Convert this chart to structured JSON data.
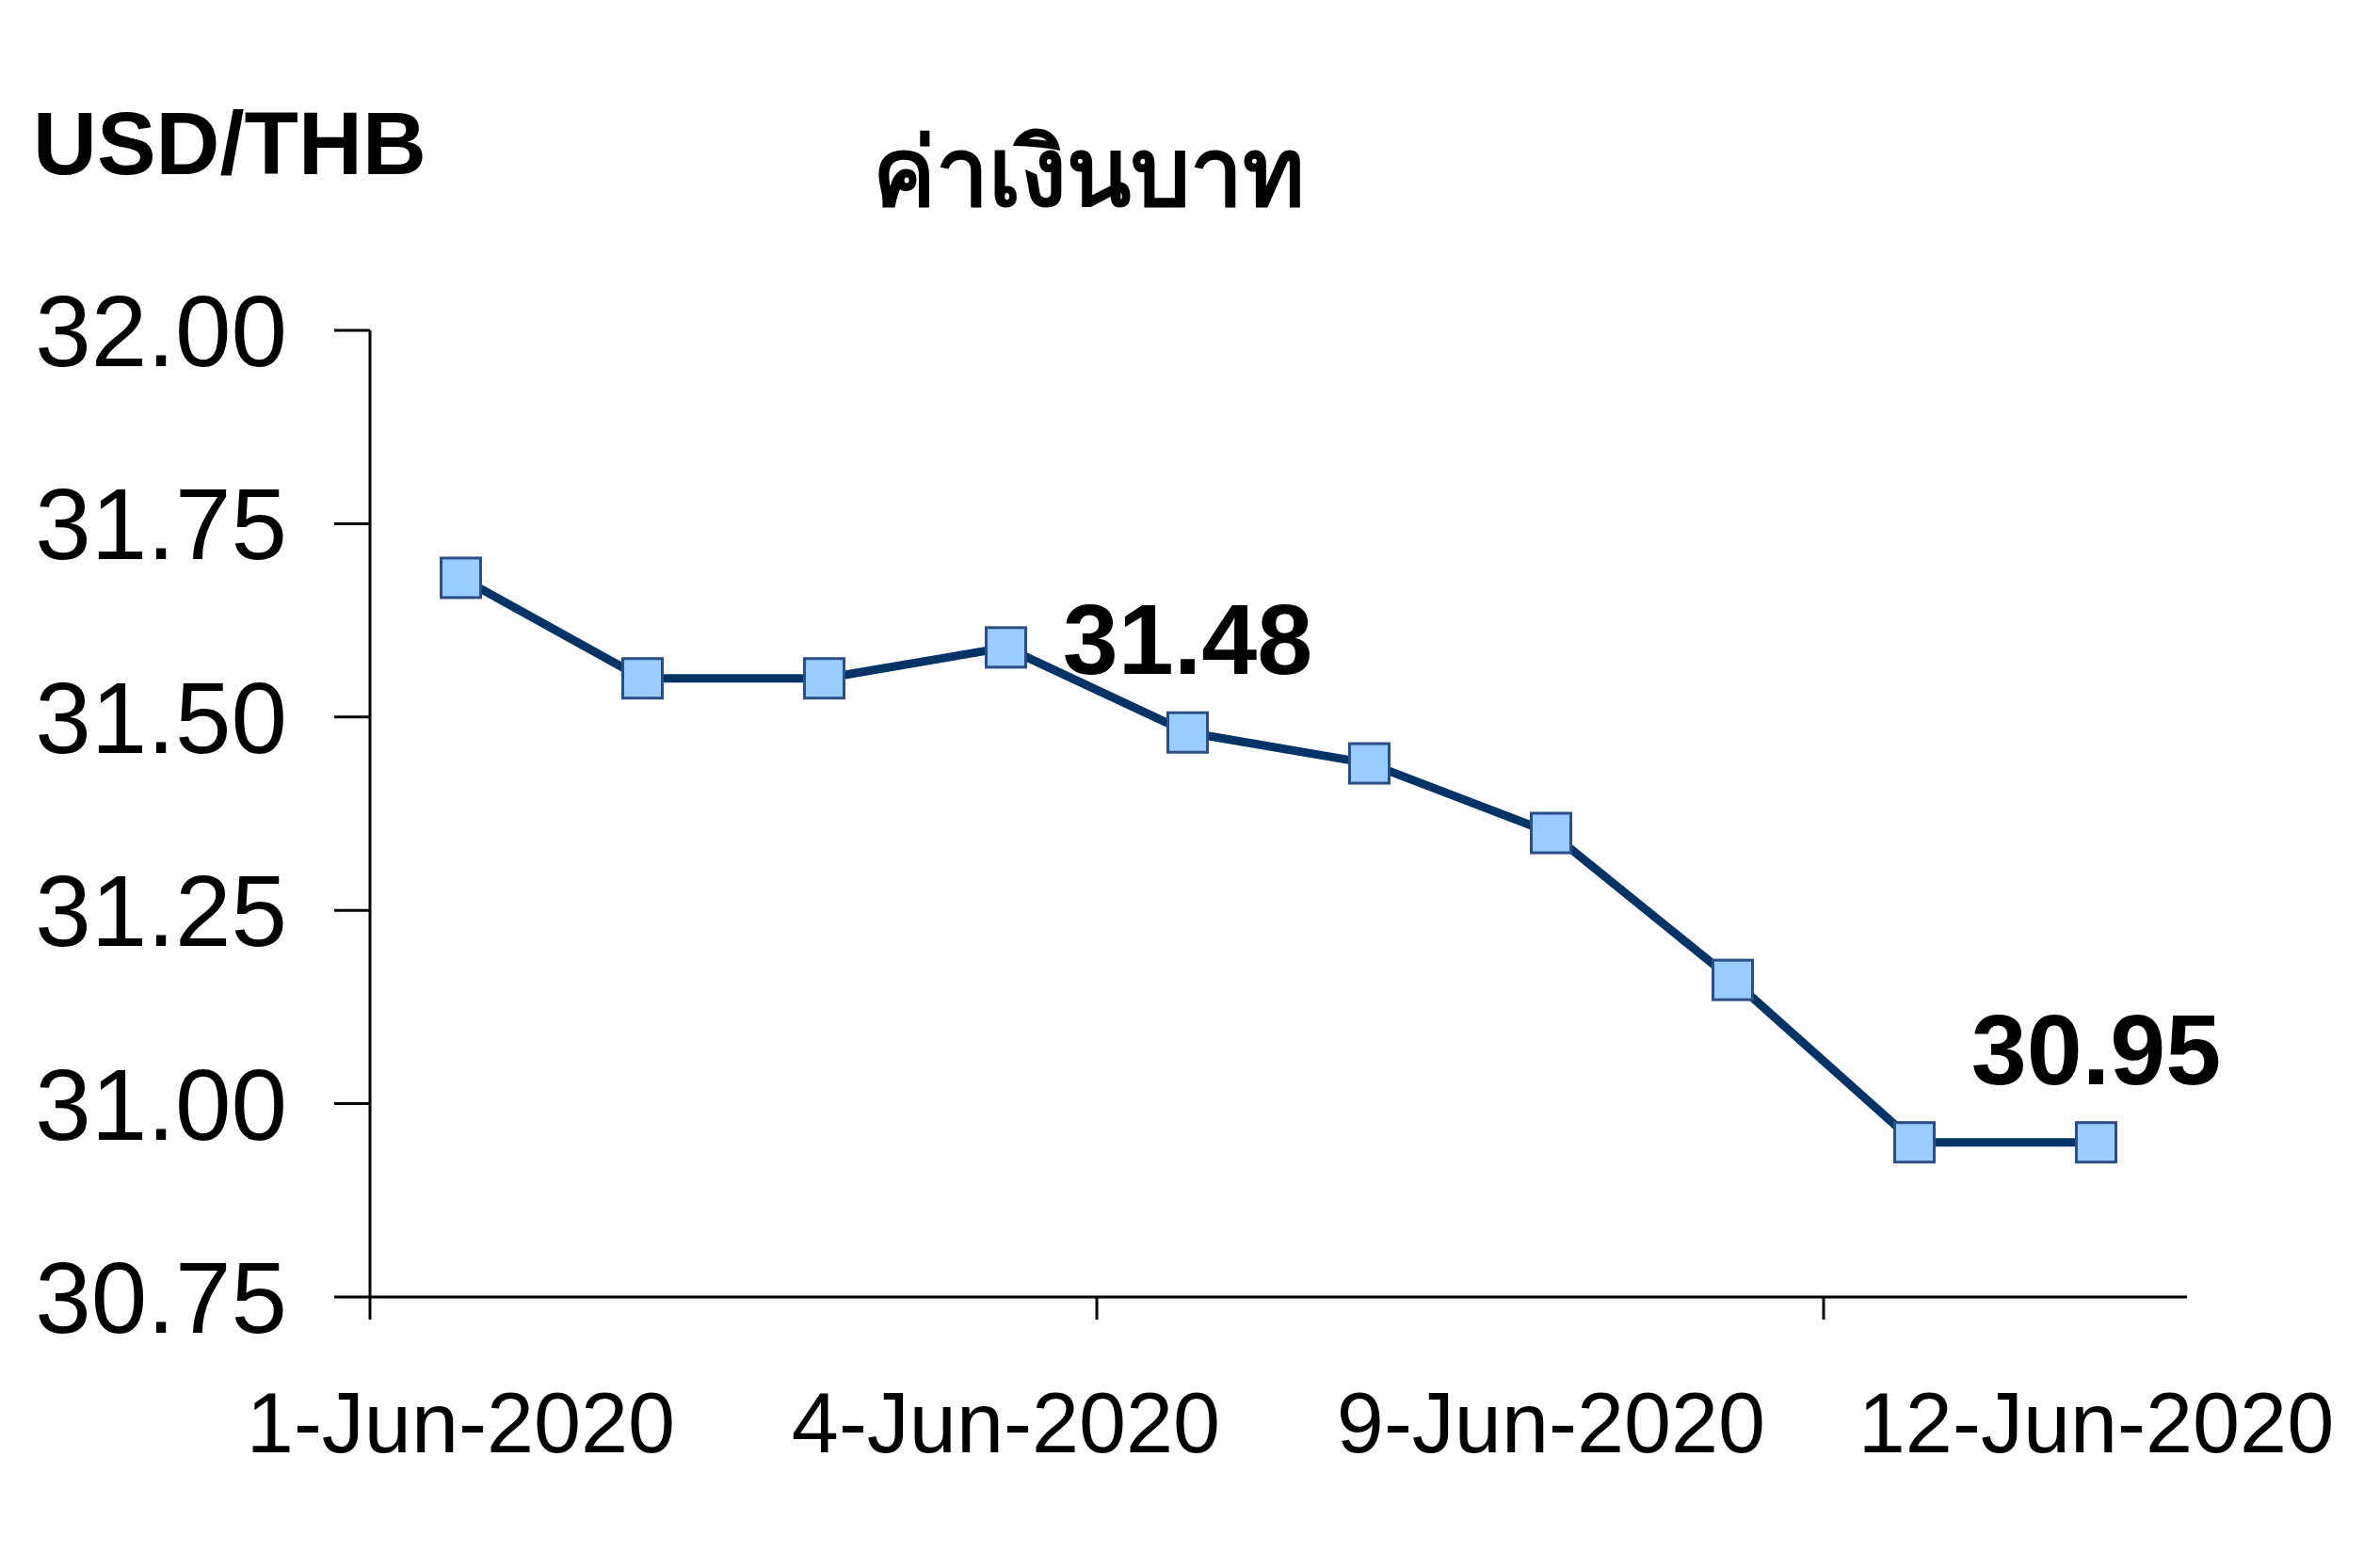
{
  "chart_data": {
    "type": "line",
    "title": "ค่าเงินบาท",
    "ylabel": "USD/THB",
    "categories": [
      "1-Jun-2020",
      null,
      null,
      "4-Jun-2020",
      null,
      null,
      "9-Jun-2020",
      null,
      null,
      "12-Jun-2020"
    ],
    "series": [
      {
        "color": "#003366",
        "values": [
          31.68,
          31.55,
          31.55,
          31.59,
          31.48,
          31.44,
          31.35,
          31.16,
          30.95,
          30.95
        ],
        "value_labels": [
          null,
          null,
          null,
          null,
          "31.48",
          null,
          null,
          null,
          null,
          "30.95"
        ]
      }
    ],
    "ylim": [
      30.75,
      32
    ],
    "yticks": [
      {
        "value": 30.75,
        "label": "30.75"
      },
      {
        "value": 31,
        "label": "31.00"
      },
      {
        "value": 31.25,
        "label": "31.25"
      },
      {
        "value": 31.5,
        "label": "31.50"
      },
      {
        "value": 31.75,
        "label": "31.75"
      },
      {
        "value": 32,
        "label": "32.00"
      }
    ],
    "marker": "square",
    "line_style": "solid"
  }
}
